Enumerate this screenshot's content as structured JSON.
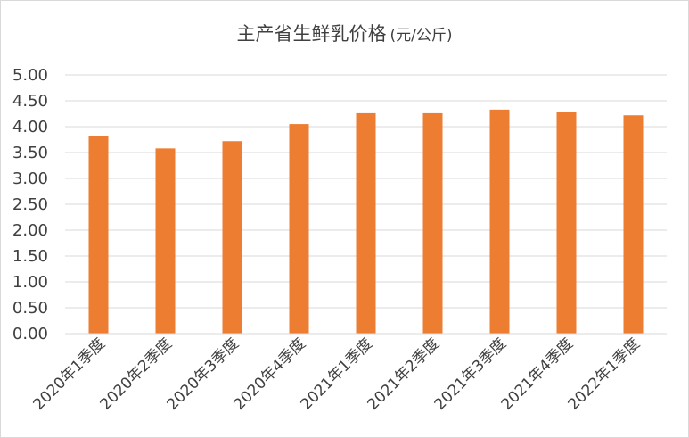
{
  "chart_data": {
    "type": "bar",
    "title": "主产省生鲜乳价格",
    "unit": "(元/公斤)",
    "categories": [
      "2020年1季度",
      "2020年2季度",
      "2020年3季度",
      "2020年4季度",
      "2021年1季度",
      "2021年2季度",
      "2021年3季度",
      "2021年4季度",
      "2022年1季度"
    ],
    "values": [
      3.81,
      3.58,
      3.72,
      4.05,
      4.26,
      4.26,
      4.33,
      4.29,
      4.22
    ],
    "ylim": [
      0,
      5
    ],
    "yticks": [
      "0.00",
      "0.50",
      "1.00",
      "1.50",
      "2.00",
      "2.50",
      "3.00",
      "3.50",
      "4.00",
      "4.50",
      "5.00"
    ],
    "grid": true,
    "bar_color": "#ed7d31",
    "grid_color": "#d9d9d9"
  }
}
